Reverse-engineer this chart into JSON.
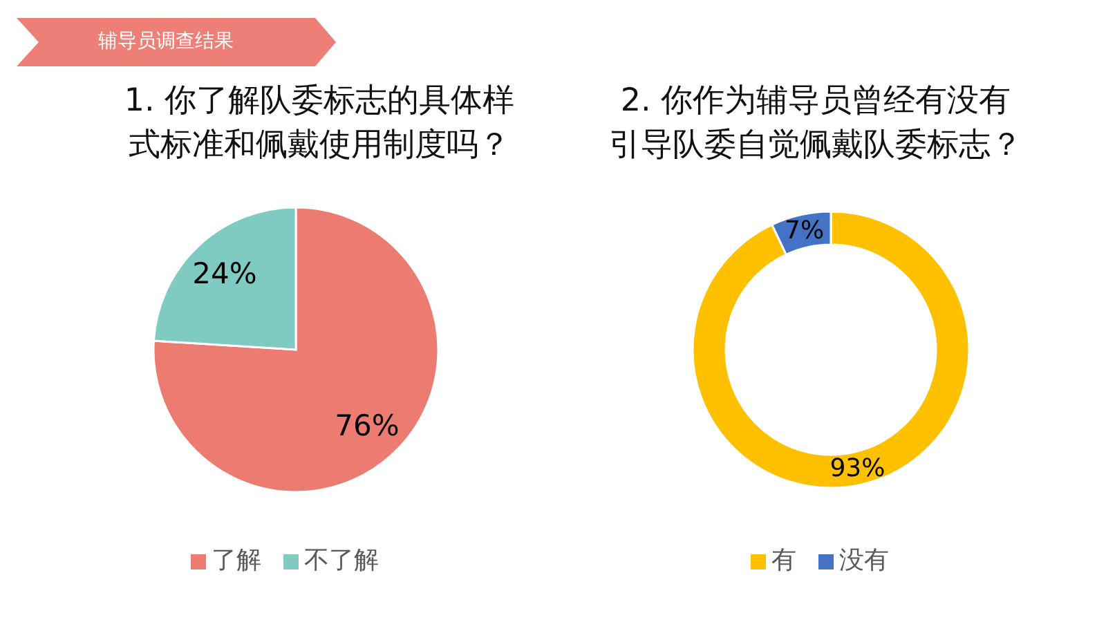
{
  "chart_data": [
    {
      "type": "pie",
      "title": "1. 你了解队委标志的具体样式标准和佩戴使用制度吗？",
      "annotations": [
        "辅导员调查结果"
      ],
      "categories": [
        "了解",
        "不了解"
      ],
      "values": [
        76,
        24
      ],
      "colors": [
        "#ec7b71",
        "#7fcbc1"
      ],
      "value_labels": [
        "76%",
        "24%"
      ],
      "legend": "bottom"
    },
    {
      "type": "donut",
      "title": "2. 你作为辅导员曾经有没有引导队委自觉佩戴队委标志？",
      "categories": [
        "有",
        "没有"
      ],
      "values": [
        93,
        7
      ],
      "colors": [
        "#ffc000",
        "#4472c4"
      ],
      "value_labels": [
        "93%",
        "7%"
      ],
      "legend": "bottom"
    }
  ]
}
